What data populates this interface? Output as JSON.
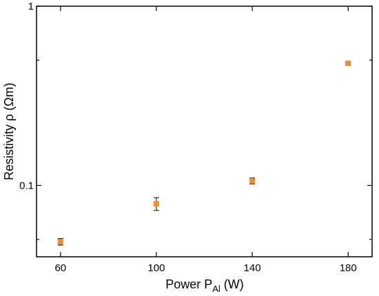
{
  "chart_data": {
    "type": "scatter",
    "title": "",
    "xlabel_main": "Power P",
    "xlabel_sub": "Al",
    "xlabel_unit": " (W)",
    "ylabel": "Resistivity ρ (Ωm)",
    "x_scale": "linear",
    "y_scale": "log",
    "xlim": [
      50,
      190
    ],
    "ylim": [
      0.04,
      1
    ],
    "x_ticks": [
      60,
      100,
      140,
      180
    ],
    "x_tick_labels": [
      "60",
      "100",
      "140",
      "180"
    ],
    "y_major_ticks": [
      0.1,
      1
    ],
    "y_tick_labels": [
      "0.1",
      "1"
    ],
    "y_minor_ticks": [
      0.05,
      0.5
    ],
    "grid": false,
    "marker": "square",
    "marker_color": "#f28e2b",
    "series": [
      {
        "x": [
          60,
          100,
          140,
          180
        ],
        "y": [
          0.0485,
          0.079,
          0.106,
          0.48
        ],
        "y_err_low": [
          0.0465,
          0.0725,
          0.102,
          0.469
        ],
        "y_err_high": [
          0.0505,
          0.0855,
          0.11,
          0.491
        ]
      }
    ]
  }
}
